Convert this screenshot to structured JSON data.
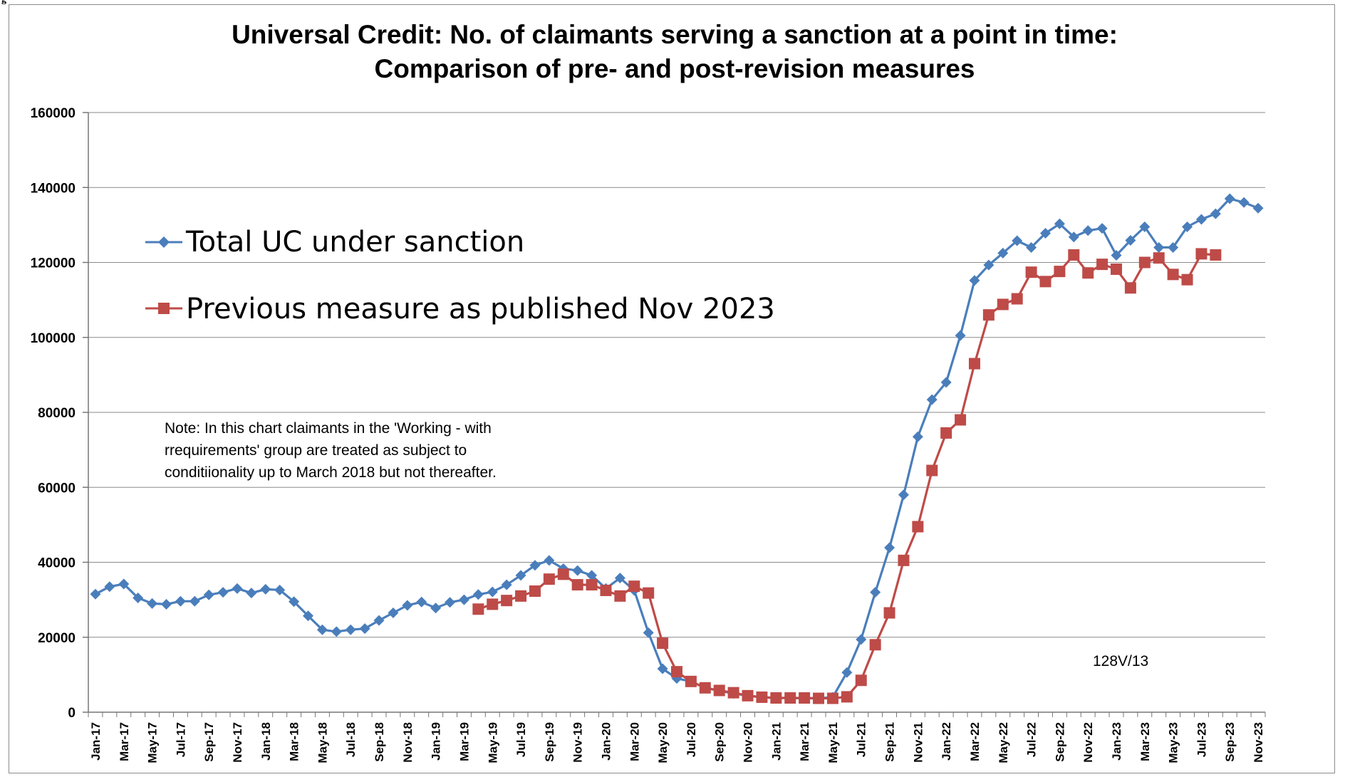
{
  "corner_mark": "g",
  "chart_data": {
    "type": "line",
    "title": [
      "Universal Credit: No. of claimants serving a sanction at a point in time:",
      "Comparison of pre- and post-revision measures"
    ],
    "xlabel": "",
    "ylabel": "",
    "ylim": [
      0,
      160000
    ],
    "yticks": [
      0,
      20000,
      40000,
      60000,
      80000,
      100000,
      120000,
      140000,
      160000
    ],
    "grid": "horizontal",
    "legend_position": "upper-left",
    "categories": [
      "Jan-17",
      "Feb-17",
      "Mar-17",
      "Apr-17",
      "May-17",
      "Jun-17",
      "Jul-17",
      "Aug-17",
      "Sep-17",
      "Oct-17",
      "Nov-17",
      "Dec-17",
      "Jan-18",
      "Feb-18",
      "Mar-18",
      "Apr-18",
      "May-18",
      "Jun-18",
      "Jul-18",
      "Aug-18",
      "Sep-18",
      "Oct-18",
      "Nov-18",
      "Dec-18",
      "Jan-19",
      "Feb-19",
      "Mar-19",
      "Apr-19",
      "May-19",
      "Jun-19",
      "Jul-19",
      "Aug-19",
      "Sep-19",
      "Oct-19",
      "Nov-19",
      "Dec-19",
      "Jan-20",
      "Feb-20",
      "Mar-20",
      "Apr-20",
      "May-20",
      "Jun-20",
      "Jul-20",
      "Aug-20",
      "Sep-20",
      "Oct-20",
      "Nov-20",
      "Dec-20",
      "Jan-21",
      "Feb-21",
      "Mar-21",
      "Apr-21",
      "May-21",
      "Jun-21",
      "Jul-21",
      "Aug-21",
      "Sep-21",
      "Oct-21",
      "Nov-21",
      "Dec-21",
      "Jan-22",
      "Feb-22",
      "Mar-22",
      "Apr-22",
      "May-22",
      "Jun-22",
      "Jul-22",
      "Aug-22",
      "Sep-22",
      "Oct-22",
      "Nov-22",
      "Dec-22",
      "Jan-23",
      "Feb-23",
      "Mar-23",
      "Apr-23",
      "May-23",
      "Jun-23",
      "Jul-23",
      "Aug-23",
      "Sep-23",
      "Oct-23",
      "Nov-23"
    ],
    "tick_labels": [
      "Jan-17",
      "Mar-17",
      "May-17",
      "Jul-17",
      "Sep-17",
      "Nov-17",
      "Jan-18",
      "Mar-18",
      "May-18",
      "Jul-18",
      "Sep-18",
      "Nov-18",
      "Jan-19",
      "Mar-19",
      "May-19",
      "Jul-19",
      "Sep-19",
      "Nov-19",
      "Jan-20",
      "Mar-20",
      "May-20",
      "Jul-20",
      "Sep-20",
      "Nov-20",
      "Jan-21",
      "Mar-21",
      "May-21",
      "Jul-21",
      "Sep-21",
      "Nov-21",
      "Jan-22",
      "Mar-22",
      "May-22",
      "Jul-22",
      "Sep-22",
      "Nov-22",
      "Jan-23",
      "Mar-23",
      "May-23",
      "Jul-23",
      "Sep-23",
      "Nov-23"
    ],
    "series": [
      {
        "name": "Total UC under sanction",
        "color": "#4a7ebb",
        "marker": "diamond",
        "values": [
          31500,
          33500,
          34200,
          30500,
          29000,
          28800,
          29600,
          29600,
          31300,
          32000,
          33000,
          31800,
          32800,
          32600,
          29500,
          25700,
          22000,
          21500,
          22000,
          22300,
          24500,
          26500,
          28500,
          29400,
          27800,
          29300,
          30000,
          31400,
          32100,
          34000,
          36500,
          39200,
          40500,
          38300,
          37800,
          36500,
          33000,
          35800,
          32500,
          21200,
          11600,
          9000,
          8200,
          6500,
          5700,
          5000,
          4400,
          4000,
          3800,
          3800,
          3700,
          3700,
          4000,
          10600,
          19400,
          32000,
          43900,
          58000,
          73500,
          83400,
          88000,
          100500,
          115200,
          119300,
          122500,
          125800,
          124000,
          127800,
          130300,
          126800,
          128500,
          129100,
          121900,
          125900,
          129500,
          124000,
          124000,
          129500,
          131500,
          133000,
          137000,
          136000,
          134500
        ]
      },
      {
        "name": "Previous measure as published Nov 2023",
        "color": "#be4b48",
        "marker": "square",
        "values": [
          null,
          null,
          null,
          null,
          null,
          null,
          null,
          null,
          null,
          null,
          null,
          null,
          null,
          null,
          null,
          null,
          null,
          null,
          null,
          null,
          null,
          null,
          null,
          null,
          null,
          null,
          null,
          27500,
          28800,
          29800,
          31000,
          32300,
          35500,
          36800,
          34000,
          34000,
          32500,
          31000,
          33600,
          31800,
          18400,
          10800,
          8200,
          6500,
          5800,
          5200,
          4400,
          4000,
          3800,
          3800,
          3800,
          3700,
          3700,
          4100,
          8500,
          18000,
          26500,
          40500,
          49500,
          64500,
          74500,
          78000,
          93000,
          106000,
          108800,
          110300,
          117400,
          114900,
          117600,
          122000,
          117200,
          119500,
          118200,
          113200,
          120000,
          121200,
          116800,
          115400,
          122300,
          122000,
          null,
          null,
          null
        ]
      }
    ],
    "annotations": {
      "note": [
        "Note: In this chart  claimants in the 'Working - with",
        "rrequirements'  group are treated as subject to",
        "conditiionality up to  March 2018 but not thereafter."
      ],
      "ref": "128V/13"
    }
  }
}
